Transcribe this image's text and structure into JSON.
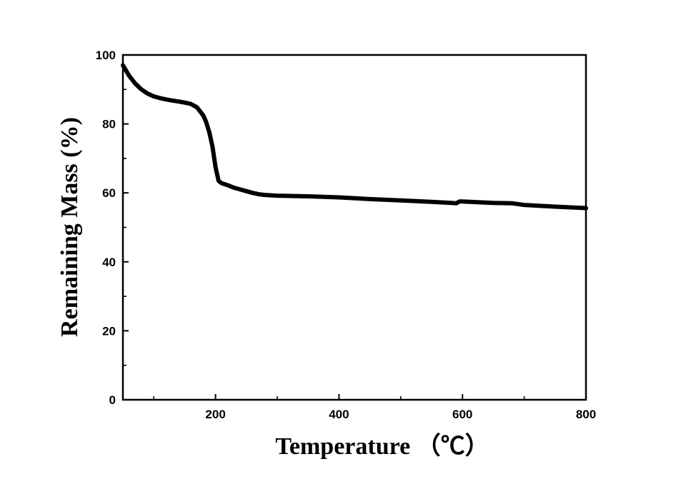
{
  "chart_data": {
    "type": "line",
    "title": "",
    "xlabel": "Temperature （℃）",
    "ylabel": "Remaining Mass (%)",
    "xlim": [
      50,
      800
    ],
    "ylim": [
      0,
      100
    ],
    "x_ticks": [
      200,
      400,
      600,
      800
    ],
    "y_ticks": [
      0,
      20,
      40,
      60,
      80,
      100
    ],
    "x_minor_ticks": [
      100,
      300,
      500,
      700
    ],
    "y_minor_ticks": [
      10,
      30,
      50,
      70,
      90
    ],
    "grid": false,
    "legend": false,
    "series": [
      {
        "color": "#000000",
        "x": [
          50,
          55,
          60,
          70,
          80,
          90,
          100,
          110,
          120,
          130,
          140,
          150,
          160,
          170,
          180,
          185,
          190,
          195,
          200,
          205,
          210,
          215,
          220,
          230,
          240,
          250,
          260,
          270,
          280,
          300,
          350,
          400,
          450,
          500,
          550,
          590,
          595,
          600,
          650,
          680,
          700,
          750,
          800
        ],
        "y": [
          97,
          95.5,
          94,
          91.7,
          90,
          88.8,
          88,
          87.5,
          87.1,
          86.8,
          86.5,
          86.2,
          85.8,
          84.8,
          82.5,
          80.5,
          77.5,
          73.5,
          67.5,
          63.5,
          62.8,
          62.5,
          62.2,
          61.5,
          61,
          60.5,
          60,
          59.6,
          59.4,
          59.2,
          59,
          58.7,
          58.2,
          57.8,
          57.4,
          57,
          57.5,
          57.5,
          57.1,
          57,
          56.5,
          56,
          55.6
        ]
      }
    ]
  }
}
